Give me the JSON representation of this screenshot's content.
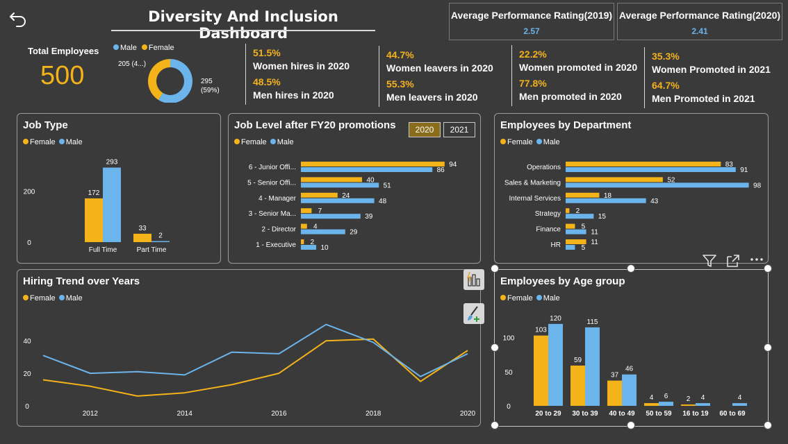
{
  "header": {
    "title": "Diversity And Inclusion Dashboard"
  },
  "kpis": [
    {
      "label": "Average Performance Rating(2019)",
      "value": "2.57"
    },
    {
      "label": "Average Performance Rating(2020)",
      "value": "2.41"
    }
  ],
  "total": {
    "label": "Total Employees",
    "value": "500",
    "legend_male": "Male",
    "legend_female": "Female",
    "female_label": "205 (4...)",
    "male_label": "295",
    "male_pct": "(59%)"
  },
  "stats": [
    {
      "top_pct": "51.5%",
      "top_text": "Women hires in 2020",
      "bot_pct": "48.5%",
      "bot_text": "Men hires in 2020"
    },
    {
      "top_pct": "44.7%",
      "top_text": "Women leavers in 2020",
      "bot_pct": "55.3%",
      "bot_text": "Men leavers in 2020"
    },
    {
      "top_pct": "22.2%",
      "top_text": "Women promoted in 2020",
      "bot_pct": "77.8%",
      "bot_text": "Men promoted in 2020"
    },
    {
      "top_pct": "35.3%",
      "top_text": "Women Promoted in 2021",
      "bot_pct": "64.7%",
      "bot_text": "Men Promoted in 2021"
    }
  ],
  "legend": {
    "female": "Female",
    "male": "Male"
  },
  "colors": {
    "female": "#f5b31a",
    "male": "#6cb4ec",
    "background": "#3a3a3a"
  },
  "panels": {
    "job_type": {
      "title": "Job Type"
    },
    "job_level": {
      "title": "Job Level after FY20 promotions",
      "year_buttons": [
        "2020",
        "2021"
      ],
      "selected_year": "2020"
    },
    "department": {
      "title": "Employees by Department"
    },
    "hiring": {
      "title": "Hiring Trend over Years"
    },
    "age": {
      "title": "Employees by Age group"
    }
  },
  "icons": {
    "back": "back-arrow-icon",
    "filter": "filter-icon",
    "expand": "focus-mode-icon",
    "more": "more-options-icon",
    "build_visual": "build-visual-icon",
    "format_visual": "format-visual-icon"
  },
  "chart_data": [
    {
      "id": "gender_donut",
      "type": "pie",
      "title": "",
      "categories": [
        "Male",
        "Female"
      ],
      "values": [
        295,
        205
      ]
    },
    {
      "id": "job_type",
      "type": "bar",
      "title": "Job Type",
      "categories": [
        "Full Time",
        "Part Time"
      ],
      "series": [
        {
          "name": "Female",
          "values": [
            172,
            33
          ]
        },
        {
          "name": "Male",
          "values": [
            293,
            2
          ]
        }
      ],
      "yticks": [
        "0",
        "200"
      ],
      "ylim": [
        0,
        300
      ]
    },
    {
      "id": "job_level",
      "type": "bar",
      "orientation": "horizontal",
      "title": "Job Level after FY20 promotions",
      "categories": [
        "6 - Junior Offi...",
        "5 - Senior Offi...",
        "4 - Manager",
        "3 - Senior Ma...",
        "2 - Director",
        "1 - Executive"
      ],
      "series": [
        {
          "name": "Female",
          "values": [
            94,
            40,
            24,
            7,
            4,
            2
          ]
        },
        {
          "name": "Male",
          "values": [
            86,
            51,
            48,
            39,
            29,
            10
          ]
        }
      ],
      "xlim": [
        0,
        100
      ]
    },
    {
      "id": "department",
      "type": "bar",
      "orientation": "horizontal",
      "title": "Employees by Department",
      "categories": [
        "Operations",
        "Sales & Marketing",
        "Internal Services",
        "Strategy",
        "Finance",
        "HR"
      ],
      "series": [
        {
          "name": "Female",
          "values": [
            83,
            52,
            18,
            2,
            5,
            11
          ]
        },
        {
          "name": "Male",
          "values": [
            91,
            98,
            43,
            15,
            11,
            5
          ]
        }
      ],
      "xlim": [
        0,
        100
      ]
    },
    {
      "id": "hiring",
      "type": "line",
      "title": "Hiring Trend over Years",
      "x": [
        2011,
        2012,
        2013,
        2014,
        2015,
        2016,
        2017,
        2018,
        2019,
        2020
      ],
      "xticks": [
        "2012",
        "2014",
        "2016",
        "2018",
        "2020"
      ],
      "series": [
        {
          "name": "Female",
          "values": [
            16,
            12,
            6,
            8,
            13,
            20,
            40,
            41,
            15,
            34
          ]
        },
        {
          "name": "Male",
          "values": [
            31,
            20,
            21,
            19,
            33,
            32,
            50,
            39,
            18,
            32
          ]
        }
      ],
      "yticks": [
        "0",
        "20",
        "40"
      ],
      "ylim": [
        0,
        52
      ]
    },
    {
      "id": "age",
      "type": "bar",
      "title": "Employees by Age group",
      "categories": [
        "20 to 29",
        "30 to 39",
        "40 to 49",
        "50 to 59",
        "16 to 19",
        "60 to 69"
      ],
      "series": [
        {
          "name": "Female",
          "values": [
            103,
            59,
            37,
            4,
            2,
            null
          ]
        },
        {
          "name": "Male",
          "values": [
            120,
            115,
            46,
            6,
            4,
            4
          ]
        }
      ],
      "yticks": [
        "0",
        "50",
        "100"
      ],
      "ylim": [
        0,
        125
      ]
    }
  ]
}
